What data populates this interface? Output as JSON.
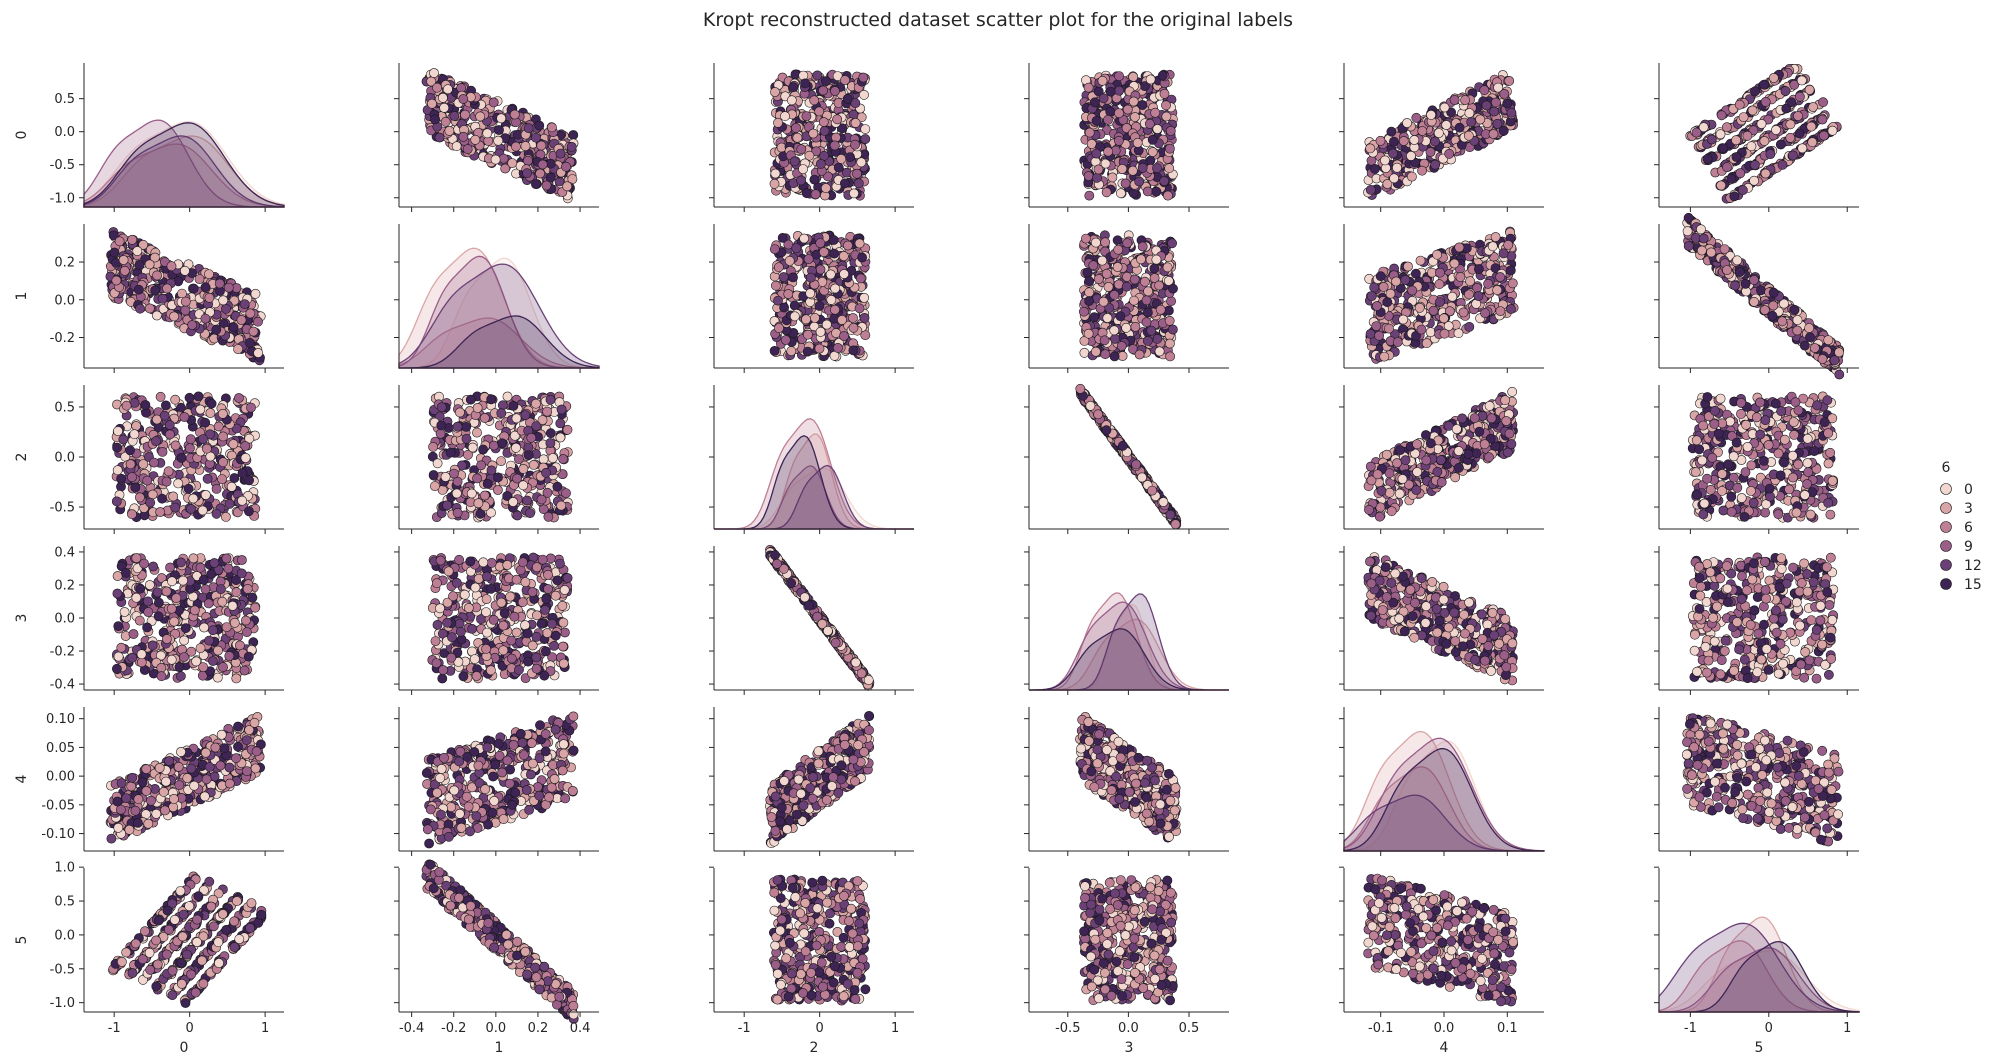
{
  "chart_data": {
    "type": "scatter",
    "title": "Kropt reconstructed dataset scatter plot for the original labels",
    "variables": [
      "0",
      "1",
      "2",
      "3",
      "4",
      "5"
    ],
    "diag_kind": "kde",
    "hue_variable": "6",
    "legend": {
      "title": "6",
      "placement": "right",
      "entries": [
        "0",
        "3",
        "6",
        "9",
        "12",
        "15"
      ]
    },
    "palette": [
      "#f1d7cf",
      "#daa5a6",
      "#bf7f95",
      "#9a5e89",
      "#6b4077",
      "#3d2454"
    ],
    "grid": false,
    "ranges": {
      "0": [
        -1.05,
        0.95
      ],
      "1": [
        -0.33,
        0.37
      ],
      "2": [
        -0.66,
        0.66
      ],
      "3": [
        -0.4,
        0.4
      ],
      "4": [
        -0.12,
        0.11
      ],
      "5": [
        -1.05,
        0.9
      ]
    },
    "axis_limits": {
      "0": [
        -1.4,
        1.25
      ],
      "1": [
        -0.46,
        0.49
      ],
      "2": [
        -1.4,
        1.25
      ],
      "3": [
        -0.82,
        0.83
      ],
      "4": [
        -0.158,
        0.158
      ],
      "5": [
        -1.4,
        1.15
      ]
    },
    "ticks_x": {
      "0": [
        "-1",
        "0",
        "1"
      ],
      "1": [
        "-0.4",
        "-0.2",
        "0.0",
        "0.2",
        "0.4"
      ],
      "2": [
        "-1",
        "0",
        "1"
      ],
      "3": [
        "-0.5",
        "0.0",
        "0.5"
      ],
      "4": [
        "-0.1",
        "0.0",
        "0.1"
      ],
      "5": [
        "-1",
        "0",
        "1"
      ]
    },
    "ticks_y": {
      "0": [
        "-1.0",
        "-0.5",
        "0.0",
        "0.5"
      ],
      "1": [
        "-0.2",
        "0.0",
        "0.2"
      ],
      "2": [
        "-0.5",
        "0.0",
        "0.5"
      ],
      "3": [
        "-0.4",
        "-0.2",
        "0.0",
        "0.2",
        "0.4"
      ],
      "4": [
        "-0.10",
        "-0.05",
        "0.00",
        "0.05",
        "0.10"
      ],
      "5": [
        "-1.0",
        "-0.5",
        "0.0",
        "0.5",
        "1.0"
      ]
    }
  }
}
